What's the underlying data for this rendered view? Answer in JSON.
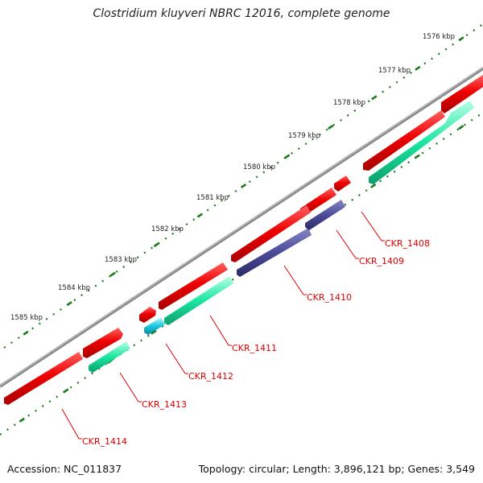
{
  "title": "Clostridium kluyveri NBRC 12016, complete genome",
  "footer": {
    "accession": "Accession: NC_011837",
    "summary": "Topology: circular; Length: 3,896,121 bp; Genes: 3,549"
  },
  "colors": {
    "backbone": "#8a8a8a",
    "forward_gene": "#e80000",
    "reverse_green": "#19e6a0",
    "reverse_purple": "#4b4b9a",
    "reverse_cyan": "#19c8e0",
    "tick": "#1a7a1a",
    "label": "#e00000"
  },
  "ticks": [
    "1576 kbp",
    "1577 kbp",
    "1578 kbp",
    "1579 kbp",
    "1580 kbp",
    "1581 kbp",
    "1582 kbp",
    "1583 kbp",
    "1584 kbp",
    "1585 kbp"
  ],
  "gene_labels": [
    "CKR_1408",
    "CKR_1409",
    "CKR_1410",
    "CKR_1411",
    "CKR_1412",
    "CKR_1413",
    "CKR_1414"
  ]
}
